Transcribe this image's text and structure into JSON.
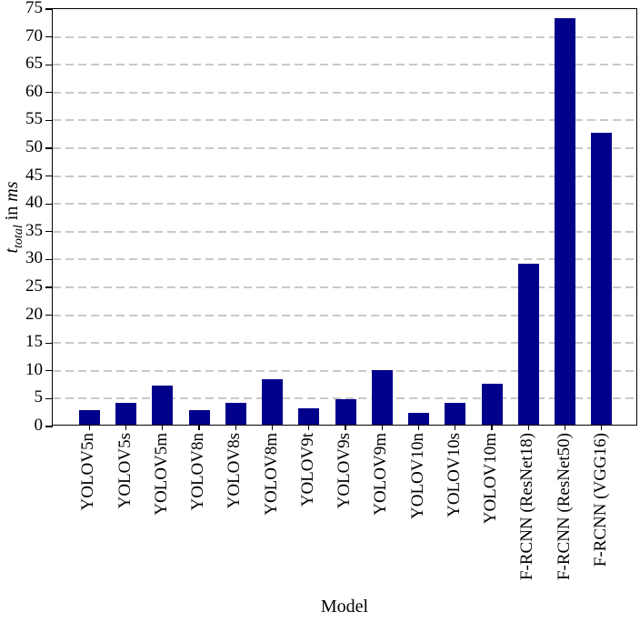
{
  "chart_data": {
    "type": "bar",
    "title": "",
    "xlabel": "Model",
    "ylabel": "t_total in ms",
    "ylabel_parts": {
      "symbol": "t",
      "subscript": "total",
      "connector": " in ",
      "unit": "ms"
    },
    "ylim": [
      0,
      75
    ],
    "ytick_step": 5,
    "ytick_labels": [
      "0",
      "5",
      "10",
      "15",
      "20",
      "25",
      "30",
      "35",
      "40",
      "45",
      "50",
      "55",
      "60",
      "65",
      "70",
      "75"
    ],
    "categories": [
      "YOLOV5n",
      "YOLOV5s",
      "YOLOV5m",
      "YOLOV8n",
      "YOLOV8s",
      "YOLOV8m",
      "YOLOV9t",
      "YOLOV9s",
      "YOLOV9m",
      "YOLOV10n",
      "YOLOV10s",
      "YOLOV10m",
      "F-RCNN (ResNet18)",
      "F-RCNN (ResNet50)",
      "F-RCNN (VGG16)"
    ],
    "values": [
      2.6,
      3.9,
      7.1,
      2.6,
      4.0,
      8.1,
      3.0,
      4.6,
      9.8,
      2.2,
      3.9,
      7.4,
      29.0,
      73.0,
      52.5
    ],
    "bar_color": "#00008B",
    "grid": "horizontal-dashed",
    "gridline_color": "#c9c9c9",
    "axis_color": "#000000",
    "legend": "none"
  }
}
